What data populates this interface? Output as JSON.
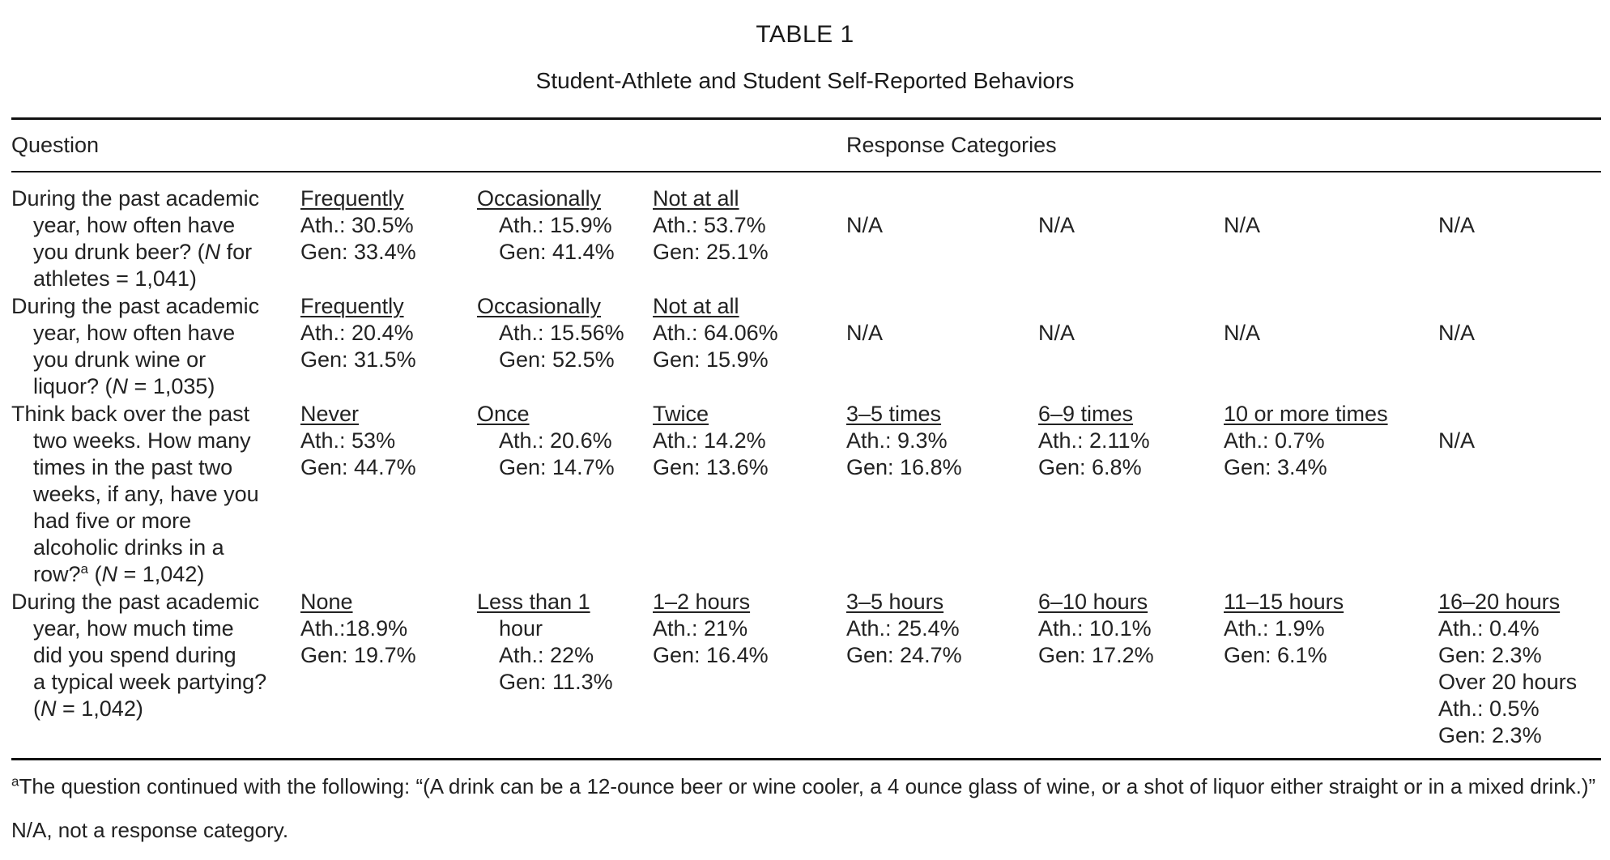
{
  "table": {
    "title": "TABLE 1",
    "subtitle": "Student-Athlete and Student Self-Reported Behaviors",
    "header": {
      "question": "Question",
      "responses": "Response Categories"
    },
    "rows": [
      {
        "q": [
          "During the past academic",
          "year, how often have",
          "you drunk beer? (",
          "N",
          " for",
          "athletes = 1,041)"
        ],
        "c1": {
          "label": "Frequently",
          "lines": [
            "Ath.: 30.5%",
            "Gen: 33.4%"
          ]
        },
        "c2": {
          "label": "Occasionally",
          "lines": [
            "Ath.: 15.9%",
            "Gen: 41.4%"
          ]
        },
        "c3": {
          "label": "Not at all",
          "lines": [
            "Ath.: 53.7%",
            "Gen: 25.1%"
          ]
        },
        "c4": "N/A",
        "c5": "N/A",
        "c6": "N/A",
        "c7": "N/A"
      },
      {
        "q": [
          "During the past academic",
          "year, how often have",
          "you drunk wine or",
          "liquor? (",
          "N",
          " = 1,035)"
        ],
        "c1": {
          "label": "Frequently",
          "lines": [
            "Ath.: 20.4%",
            "Gen: 31.5%"
          ]
        },
        "c2": {
          "label": "Occasionally",
          "lines": [
            "Ath.: 15.56%",
            "Gen: 52.5%"
          ]
        },
        "c3": {
          "label": "Not at all",
          "lines": [
            "Ath.: 64.06%",
            "Gen: 15.9%"
          ]
        },
        "c4": "N/A",
        "c5": "N/A",
        "c6": "N/A",
        "c7": "N/A"
      },
      {
        "q": [
          "Think back over the past",
          "two weeks. How many",
          "times in the past two",
          "weeks, if any, have you",
          "had five or more",
          "alcoholic drinks in a",
          "row?",
          "a",
          " (",
          "N",
          " = 1,042)"
        ],
        "c1": {
          "label": "Never",
          "lines": [
            "Ath.: 53%",
            "Gen: 44.7%"
          ]
        },
        "c2": {
          "label": "Once",
          "lines": [
            "Ath.: 20.6%",
            "Gen: 14.7%"
          ]
        },
        "c3": {
          "label": "Twice",
          "lines": [
            "Ath.: 14.2%",
            "Gen: 13.6%"
          ]
        },
        "c4": {
          "label": "3–5 times",
          "lines": [
            "Ath.: 9.3%",
            "Gen: 16.8%"
          ]
        },
        "c5": {
          "label": "6–9 times",
          "lines": [
            "Ath.: 2.11%",
            "Gen: 6.8%"
          ]
        },
        "c6": {
          "label": "10 or more times",
          "lines": [
            "Ath.: 0.7%",
            "Gen: 3.4%"
          ]
        },
        "c7": "N/A"
      },
      {
        "q": [
          "During the past academic",
          "year, how much time",
          "did you spend during",
          "a typical week partying?",
          "(",
          "N",
          " = 1,042)"
        ],
        "c1": {
          "label": "None",
          "lines": [
            "Ath.:18.9%",
            "Gen: 19.7%"
          ]
        },
        "c2": {
          "label": "Less than 1",
          "label2": "hour",
          "lines": [
            "Ath.: 22%",
            "Gen: 11.3%"
          ]
        },
        "c3": {
          "label": "1–2 hours",
          "lines": [
            "Ath.: 21%",
            "Gen: 16.4%"
          ]
        },
        "c4": {
          "label": "3–5 hours",
          "lines": [
            "Ath.: 25.4%",
            "Gen: 24.7%"
          ]
        },
        "c5": {
          "label": "6–10 hours",
          "lines": [
            "Ath.: 10.1%",
            "Gen: 17.2%"
          ]
        },
        "c6": {
          "label": "11–15 hours",
          "lines": [
            "Ath.: 1.9%",
            "Gen: 6.1%"
          ]
        },
        "c7": {
          "label": "16–20 hours",
          "lines": [
            "Ath.: 0.4%",
            "Gen: 2.3%",
            "Over 20 hours",
            "Ath.: 0.5%",
            "Gen: 2.3%"
          ]
        }
      }
    ],
    "footnotes": {
      "a_mark": "a",
      "a_text": "The question continued with the following: “(A drink can be a 12-ounce beer or wine cooler, a 4 ounce glass of wine, or a shot of liquor either straight or in a mixed drink.)”",
      "na": "N/A, not a response category."
    }
  }
}
